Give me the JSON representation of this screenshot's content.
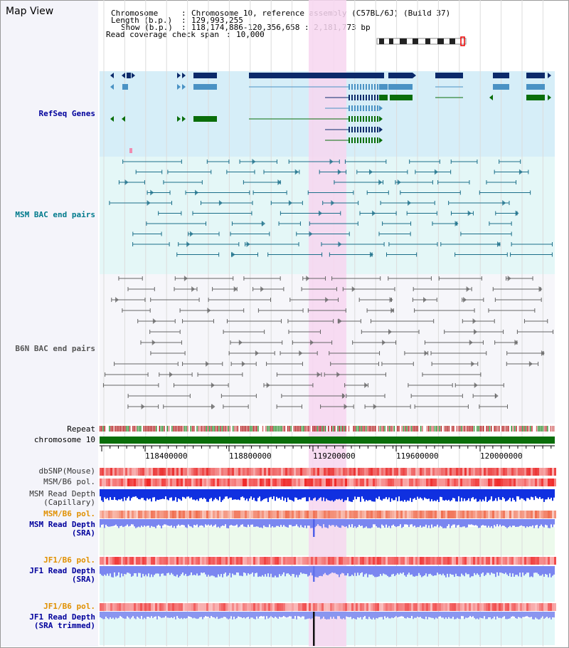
{
  "title": "Map View",
  "info": {
    "chromosome_key": "Chromosome",
    "chromosome_val": "Chromosome 10, reference assembly (C57BL/6J) (Build 37)",
    "length_key": "Length (b.p.)",
    "length_val": "129,993,255",
    "show_key": "Show (b.p.)",
    "show_val": "118,174,886-120,356,658 : 2,181,773 bp",
    "span_key": "Read coverage check span",
    "span_val": "10,000"
  },
  "tracks": {
    "refseq": "RefSeq Genes",
    "msm_bac": "MSM BAC end pairs",
    "b6n_bac": "B6N BAC end pairs",
    "repeat": "Repeat",
    "chromosome": "chromosome 10",
    "dbsnp": "dbSNP(Mouse)",
    "msm_b6_pol": "MSM/B6 pol.",
    "msm_depth_cap_1": "MSM Read Depth",
    "msm_depth_cap_2": "(Capillary)",
    "msm_b6_pol_2": "MSM/B6 pol.",
    "msm_depth_sra_1": "MSM Read Depth",
    "msm_depth_sra_2": "(SRA)",
    "jf1_b6_pol": "JF1/B6 pol.",
    "jf1_depth_sra_1": "JF1 Read Depth",
    "jf1_depth_sra_2": "(SRA)",
    "jf1_b6_pol_2": "JF1/B6 pol.",
    "jf1_depth_trim_1": "JF1 Read Depth",
    "jf1_depth_trim_2": "(SRA trimmed)"
  },
  "axis": {
    "ticks": [
      "118400000",
      "118800000",
      "119200000",
      "119600000",
      "120000000"
    ]
  },
  "colors": {
    "refseq_bg": "#d6eef8",
    "msm_bg": "#e4f7f7",
    "highlight": "#f7d6f0",
    "refseq_dark": "#0c2a6a",
    "refseq_light": "#4a92c4",
    "refseq_green": "#0a6e0a",
    "msm_line": "#1b6f8a",
    "b6n_line": "#666666",
    "depth_blue": "#1030e0",
    "depth_light": "#7a86f0",
    "snp_red": "#f06060",
    "pol_orange": "#f08a70"
  }
}
